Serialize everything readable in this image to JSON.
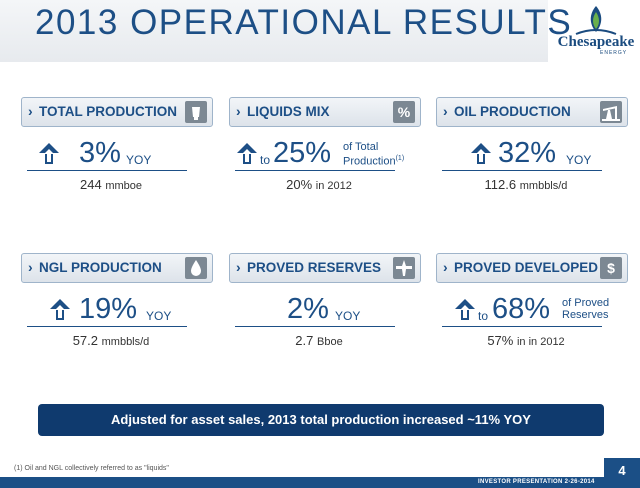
{
  "title": "2013 OPERATIONAL RESULTS",
  "logo": {
    "name": "Chesapeake",
    "sub": "ENERGY"
  },
  "colors": {
    "primary": "#1d4f86",
    "banner": "#0f3a6e",
    "icon_box": "#7c8893"
  },
  "cards": [
    {
      "label": "TOTAL PRODUCTION",
      "icon": "power-plant-icon",
      "arrow": "up-arrow-icon",
      "prefix": "",
      "big": "3%",
      "unit": "YOY",
      "unit_line2": "",
      "sub_value": "244",
      "sub_unit": "mmboe"
    },
    {
      "label": "LIQUIDS MIX",
      "icon": "percent-icon",
      "icon_glyph": "%",
      "arrow": "up-arrow-icon",
      "prefix": "to",
      "big": "25%",
      "unit": "of Total",
      "unit_line2": "Production",
      "footnote_mark": "(1)",
      "sub_value": "20%",
      "sub_unit": "in 2012"
    },
    {
      "label": "OIL PRODUCTION",
      "icon": "pumpjack-icon",
      "arrow": "up-arrow-icon",
      "prefix": "",
      "big": "32%",
      "unit": "YOY",
      "unit_line2": "",
      "sub_value": "112.6",
      "sub_unit": "mmbbls/d"
    },
    {
      "label": "NGL PRODUCTION",
      "icon": "droplet-icon",
      "arrow": "up-arrow-icon",
      "prefix": "",
      "big": "19%",
      "unit": "YOY",
      "unit_line2": "",
      "sub_value": "57.2",
      "sub_unit": "mmbbls/d"
    },
    {
      "label": "PROVED RESERVES",
      "icon": "rig-icon",
      "arrow": "",
      "prefix": "",
      "big": "2%",
      "unit": "YOY",
      "unit_line2": "",
      "sub_value": "2.7",
      "sub_unit": "Bboe"
    },
    {
      "label": "PROVED DEVELOPED",
      "icon": "document-dollar-icon",
      "icon_glyph": "$",
      "arrow": "up-arrow-icon",
      "prefix": "to",
      "big": "68%",
      "unit": "of Proved",
      "unit_line2": "Reserves",
      "sub_value": "57%",
      "sub_unit": "in in 2012"
    }
  ],
  "banner": "Adjusted for asset sales, 2013 total production increased ~11% YOY",
  "footnote": "(1) Oil and NGL collectively referred to as \"liquids\"",
  "footer_label": "INVESTOR PRESENTATION 2-26-2014",
  "page_number": "4"
}
